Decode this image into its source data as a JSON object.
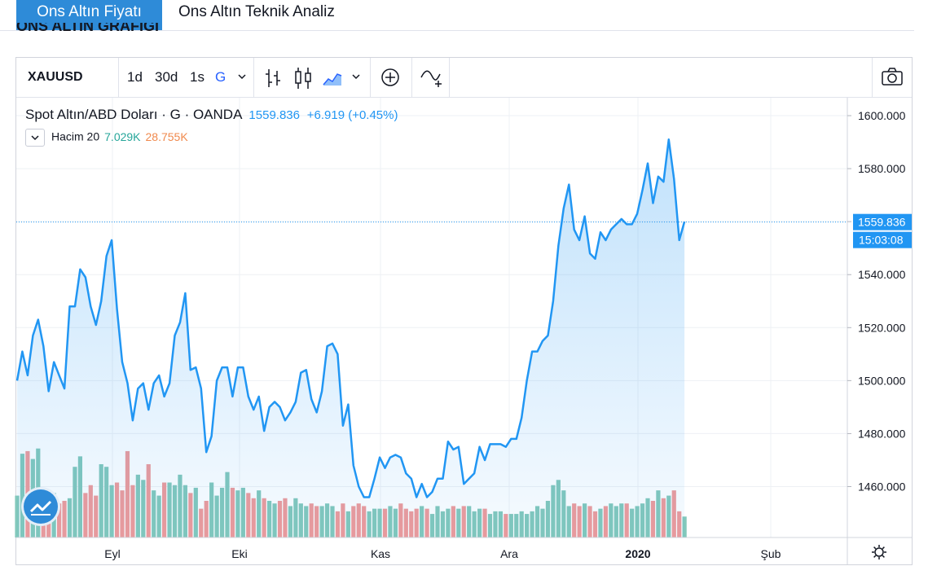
{
  "tabs": {
    "active": "Ons Altın Fiyatı",
    "inactive": "Ons Altın Teknik Analiz"
  },
  "section_title_peek": "ONS ALTIN GRAFIĞI",
  "toolbar": {
    "symbol": "XAUUSD",
    "intervals": [
      "1d",
      "30d",
      "1s",
      "G"
    ],
    "active_interval": "G",
    "icons": [
      "chevron-down-icon",
      "bar-chart-icon",
      "candlestick-icon",
      "area-chart-icon",
      "chevron-down-icon",
      "add-indicator-icon",
      "compare-icon",
      "camera-icon"
    ]
  },
  "legend": {
    "title": "Spot Altın/ABD Doları · G · OANDA",
    "last": "1559.836",
    "change": "+6.919 (+0.45%)",
    "volume_name": "Hacim 20",
    "volume_value": "7.029K",
    "volume_ma": "28.755K"
  },
  "price_tag": {
    "price": "1559.836",
    "countdown": "15:03:08"
  },
  "colors": {
    "line": "#2196f3",
    "up_volume": "#83c8bb",
    "down_volume": "#ef9a9a",
    "tag": "#2196f3"
  },
  "chart_data": {
    "type": "area",
    "title": "Spot Altın/ABD Doları",
    "y_ticks": [
      "1460.000",
      "1480.000",
      "1500.000",
      "1520.000",
      "1540.000",
      "1560.000",
      "1580.000",
      "1600.000"
    ],
    "x_tick_labels": [
      "Eyl",
      "Eki",
      "Kas",
      "Ara",
      "2020",
      "Şub"
    ],
    "ylim": [
      1442,
      1604
    ],
    "series": [
      {
        "values": [
          1500,
          1511,
          1502,
          1517,
          1523,
          1513,
          1496,
          1507,
          1502,
          1497,
          1528,
          1528,
          1542,
          1539,
          1528,
          1521,
          1530,
          1547,
          1553,
          1527,
          1507,
          1499,
          1485,
          1497,
          1499,
          1489,
          1499,
          1502,
          1494,
          1499,
          1517,
          1522,
          1533,
          1504,
          1505,
          1497,
          1473,
          1479,
          1500,
          1505,
          1505,
          1494,
          1505,
          1505,
          1494,
          1489,
          1494,
          1481,
          1490,
          1492,
          1490,
          1485,
          1488,
          1492,
          1503,
          1504,
          1493,
          1488,
          1496,
          1513,
          1514,
          1510,
          1483,
          1491,
          1468,
          1460,
          1456,
          1456,
          1463,
          1471,
          1467,
          1471,
          1472,
          1471,
          1465,
          1463,
          1456,
          1461,
          1456,
          1458,
          1463,
          1463,
          1477,
          1474,
          1475,
          1461,
          1463,
          1465,
          1475,
          1470,
          1476,
          1476,
          1476,
          1475,
          1478,
          1478,
          1486,
          1500,
          1511,
          1511,
          1515,
          1517,
          1530,
          1551,
          1565,
          1574,
          1557,
          1553,
          1562,
          1548,
          1546,
          1556,
          1553,
          1557,
          1559,
          1561,
          1559,
          1559,
          1563,
          1572,
          1582,
          1567,
          1577,
          1575,
          1591,
          1576,
          1553,
          1560
        ]
      },
      {
        "values": [
          16,
          32,
          33,
          30,
          34,
          15,
          12,
          17,
          13,
          14,
          15,
          27,
          31,
          17,
          20,
          16,
          28,
          27,
          20,
          21,
          18,
          33,
          20,
          24,
          22,
          28,
          18,
          16,
          21,
          21,
          20,
          24,
          20,
          17,
          19,
          11,
          14,
          21,
          16,
          19,
          25,
          19,
          18,
          19,
          17,
          15,
          18,
          15,
          14,
          13,
          14,
          15,
          12,
          15,
          13,
          12,
          13,
          12,
          12,
          13,
          12,
          10,
          13,
          10,
          12,
          13,
          12,
          10,
          11,
          11,
          11,
          12,
          11,
          13,
          11,
          10,
          11,
          12,
          11,
          9,
          12,
          10,
          11,
          12,
          11,
          12,
          12,
          10,
          11,
          11,
          9,
          10,
          10,
          9,
          9,
          9,
          10,
          9,
          10,
          12,
          11,
          14,
          20,
          22,
          18,
          12,
          13,
          12,
          13,
          12,
          10,
          11,
          12,
          13,
          12,
          13,
          13,
          11,
          12,
          13,
          15,
          14,
          18,
          15,
          16,
          18,
          10,
          8
        ]
      }
    ]
  }
}
